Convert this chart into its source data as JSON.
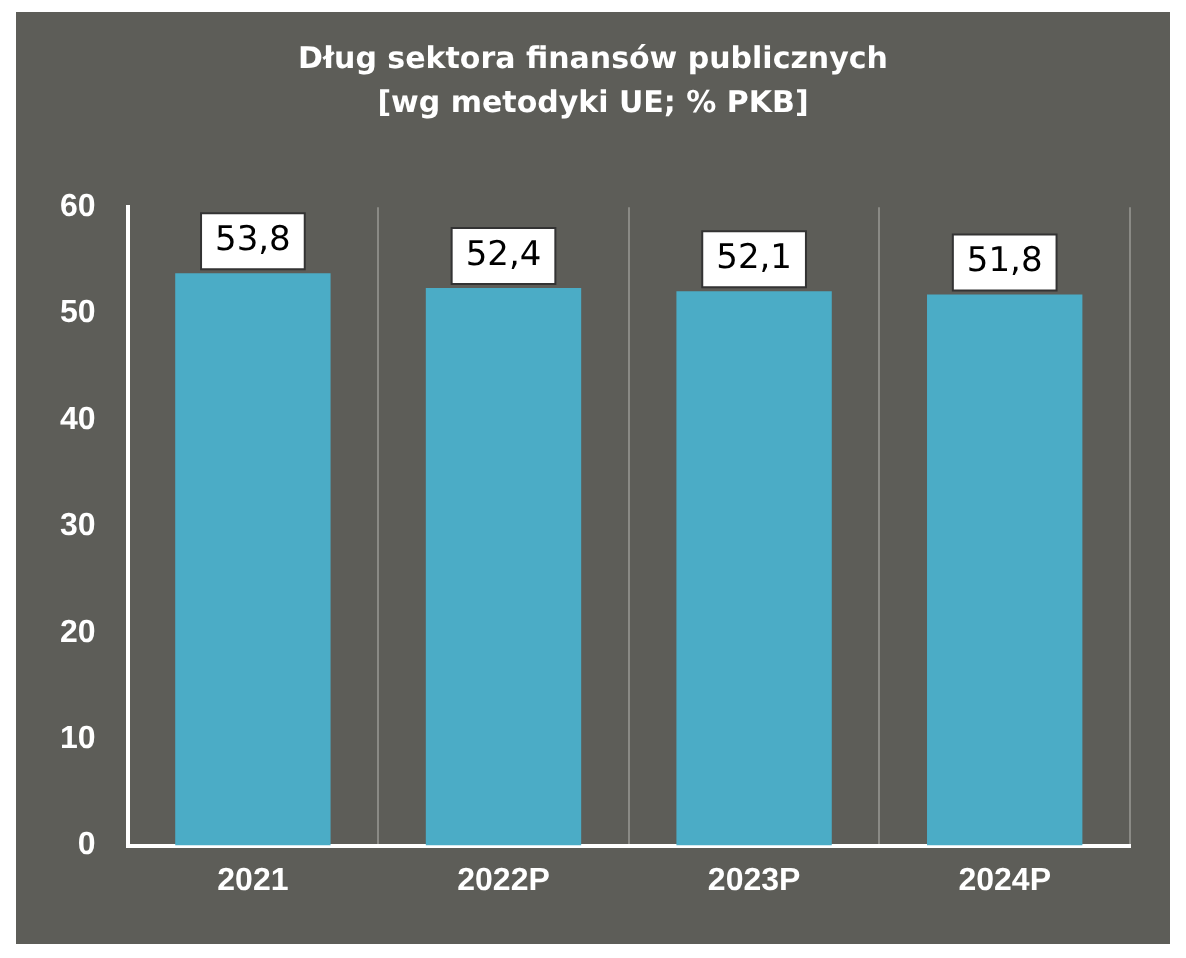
{
  "chart_data": {
    "type": "bar",
    "title": "Dług sektora finansów publicznych\n[wg metodyki UE; % PKB]",
    "categories": [
      "2021",
      "2022P",
      "2023P",
      "2024P"
    ],
    "values": [
      53.8,
      52.4,
      52.1,
      51.8
    ],
    "color": "#4bacc6",
    "value_labels": [
      "53,8",
      "52,4",
      "52,1",
      "51,8"
    ],
    "ylim": [
      0,
      60
    ],
    "yticks": [
      0,
      10,
      20,
      30,
      40,
      50,
      60
    ],
    "grid": "x"
  }
}
